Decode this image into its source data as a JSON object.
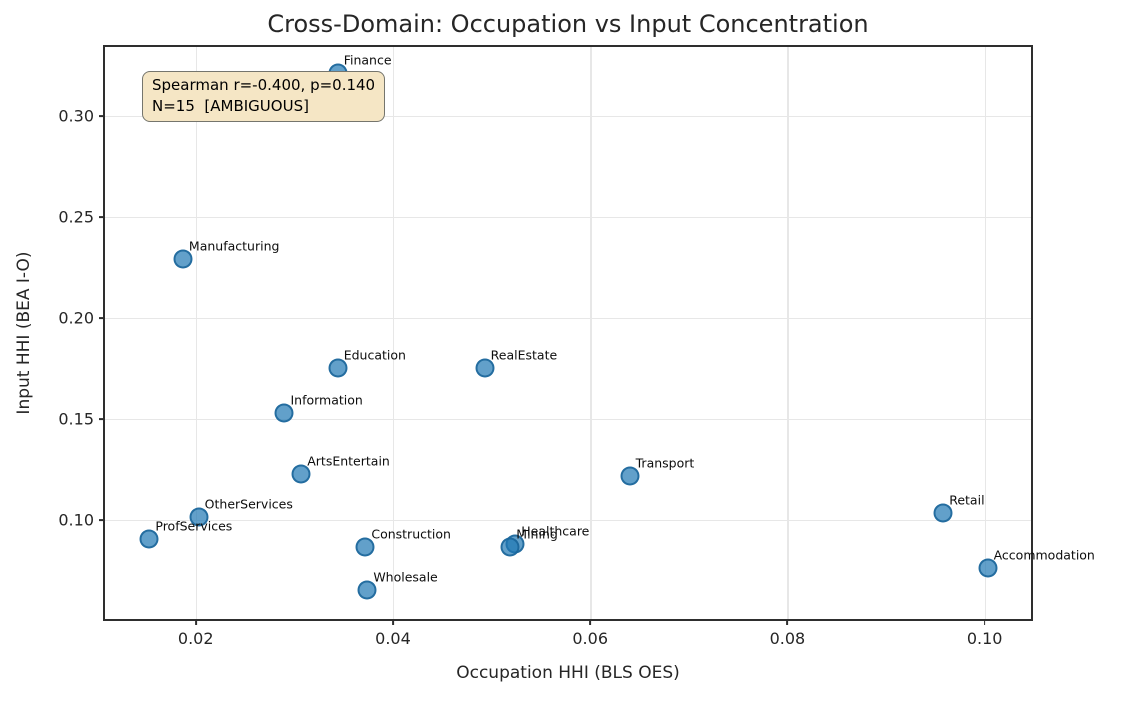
{
  "chart_data": {
    "type": "scatter",
    "title": "Cross-Domain: Occupation vs Input Concentration",
    "xlabel": "Occupation HHI (BLS OES)",
    "ylabel": "Input HHI (BEA I-O)",
    "xlim": [
      0.0108,
      0.1047
    ],
    "ylim": [
      0.051,
      0.334
    ],
    "xticks": [
      0.02,
      0.04,
      0.06,
      0.08,
      0.1
    ],
    "xtick_labels": [
      "0.02",
      "0.04",
      "0.06",
      "0.08",
      "0.10"
    ],
    "yticks": [
      0.1,
      0.15,
      0.2,
      0.25,
      0.3
    ],
    "ytick_labels": [
      "0.10",
      "0.15",
      "0.20",
      "0.25",
      "0.30"
    ],
    "grid": true,
    "legend": false,
    "marker_color": "#1f77b4",
    "marker_alpha": 0.7,
    "points": [
      {
        "label": "Finance",
        "x": 0.0344,
        "y": 0.321
      },
      {
        "label": "Manufacturing",
        "x": 0.0187,
        "y": 0.2293
      },
      {
        "label": "Education",
        "x": 0.0344,
        "y": 0.1752
      },
      {
        "label": "RealEstate",
        "x": 0.0493,
        "y": 0.1752
      },
      {
        "label": "Information",
        "x": 0.029,
        "y": 0.1528
      },
      {
        "label": "ArtsEntertain",
        "x": 0.0307,
        "y": 0.1228
      },
      {
        "label": "Transport",
        "x": 0.064,
        "y": 0.1218
      },
      {
        "label": "OtherServices",
        "x": 0.0203,
        "y": 0.1015
      },
      {
        "label": "ProfServices",
        "x": 0.0153,
        "y": 0.0905
      },
      {
        "label": "Construction",
        "x": 0.0372,
        "y": 0.0868
      },
      {
        "label": "Healthcare",
        "x": 0.0524,
        "y": 0.088
      },
      {
        "label": "Mining",
        "x": 0.0519,
        "y": 0.0868
      },
      {
        "label": "Wholesale",
        "x": 0.0374,
        "y": 0.0655
      },
      {
        "label": "Retail",
        "x": 0.0958,
        "y": 0.1035
      },
      {
        "label": "Accommodation",
        "x": 0.1003,
        "y": 0.076
      }
    ],
    "annotation": {
      "line1": "Spearman r=-0.400, p=0.140",
      "line2": "N=15  [AMBIGUOUS]",
      "bg_color": "#f5e6c5",
      "border_color": "#75756d"
    }
  }
}
